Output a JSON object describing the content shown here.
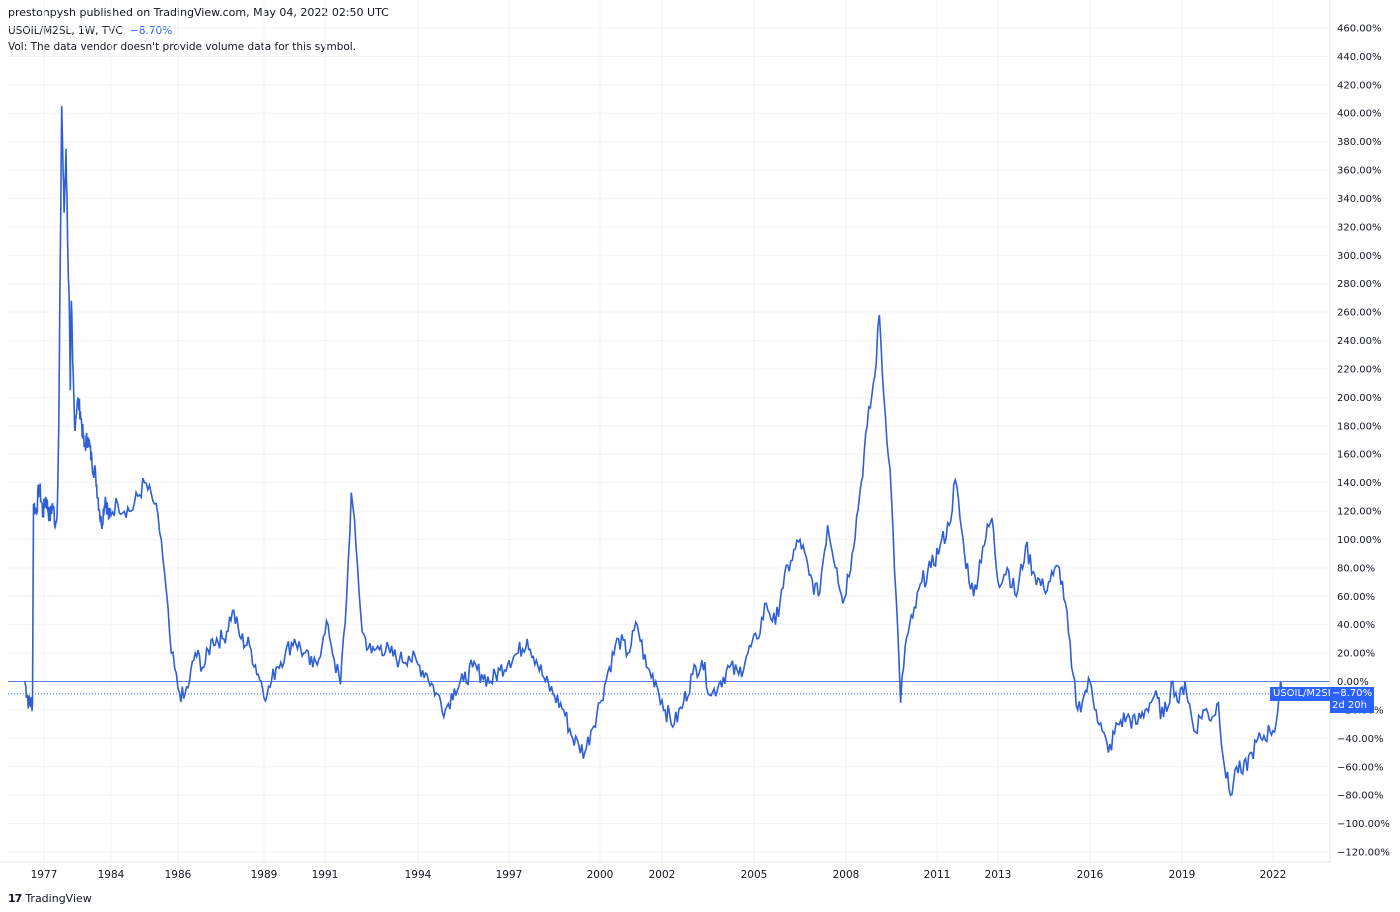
{
  "header": {
    "published": "prestonpysh published on TradingView.com, May 04, 2022 02:50 UTC"
  },
  "legend": {
    "symbol_line": "USOIL/M2SL, 1W, TVC",
    "change": "−8.70%",
    "volume_note": "Vol: The data vendor doesn't provide volume data for this symbol."
  },
  "badge": {
    "symbol": "USOIL/M2SL",
    "value": "−8.70%",
    "countdown": "2d 20h"
  },
  "brand": {
    "logo": "17",
    "name": "TradingView"
  },
  "colors": {
    "line": "#2f5fd6",
    "accent": "#2962ff",
    "grid": "#f0f3fa",
    "baseline": "#5b7fe0"
  },
  "chart_data": {
    "type": "line",
    "title": "",
    "xlabel": "",
    "ylabel": "",
    "y_unit": "%",
    "ylim": [
      -130,
      470
    ],
    "baseline": 0.0,
    "last_value": -8.7,
    "grid": true,
    "y_ticks": [
      460,
      440,
      420,
      400,
      380,
      360,
      340,
      320,
      300,
      280,
      260,
      240,
      220,
      200,
      180,
      160,
      140,
      120,
      100,
      80,
      60,
      40,
      20,
      0,
      -20,
      -40,
      -60,
      -80,
      -100,
      -120
    ],
    "y_tick_labels": [
      "460.00%",
      "440.00%",
      "420.00%",
      "400.00%",
      "380.00%",
      "360.00%",
      "340.00%",
      "320.00%",
      "300.00%",
      "280.00%",
      "260.00%",
      "240.00%",
      "220.00%",
      "200.00%",
      "180.00%",
      "160.00%",
      "140.00%",
      "120.00%",
      "100.00%",
      "80.00%",
      "60.00%",
      "40.00%",
      "20.00%",
      "0.00%",
      "−20.00%",
      "−40.00%",
      "−60.00%",
      "−80.00%",
      "−100.00%",
      "−120.00%"
    ],
    "x_tick_labels": [
      "1977",
      "1984",
      "1986",
      "1989",
      "1991",
      "1994",
      "1997",
      "2000",
      "2002",
      "2005",
      "2008",
      "2011",
      "2013",
      "2016",
      "2019",
      "2022"
    ],
    "x_tick_years": [
      1977,
      1984,
      1986,
      1989,
      1991,
      1994,
      1997,
      2000,
      2002,
      2005,
      2008,
      2011,
      2013,
      2016,
      2019,
      2022
    ],
    "series": [
      {
        "values": [
          [
            1975.0,
            0
          ],
          [
            1975.4,
            -15
          ],
          [
            1975.8,
            -15
          ],
          [
            1975.9,
            125
          ],
          [
            1976.2,
            120
          ],
          [
            1976.5,
            138
          ],
          [
            1976.9,
            118
          ],
          [
            1977.2,
            130
          ],
          [
            1977.6,
            115
          ],
          [
            1977.9,
            125
          ],
          [
            1978.2,
            110
          ],
          [
            1978.4,
            125
          ],
          [
            1978.55,
            180
          ],
          [
            1978.7,
            300
          ],
          [
            1978.85,
            405
          ],
          [
            1979.0,
            360
          ],
          [
            1979.1,
            330
          ],
          [
            1979.3,
            375
          ],
          [
            1979.5,
            300
          ],
          [
            1979.65,
            260
          ],
          [
            1979.75,
            205
          ],
          [
            1979.85,
            268
          ],
          [
            1980.0,
            225
          ],
          [
            1980.2,
            180
          ],
          [
            1980.5,
            198
          ],
          [
            1980.8,
            190
          ],
          [
            1981.2,
            165
          ],
          [
            1981.6,
            172
          ],
          [
            1982.0,
            155
          ],
          [
            1982.4,
            145
          ],
          [
            1982.8,
            120
          ],
          [
            1983.0,
            110
          ],
          [
            1983.4,
            130
          ],
          [
            1983.8,
            115
          ],
          [
            1984.2,
            125
          ],
          [
            1984.6,
            120
          ],
          [
            1985.0,
            140
          ],
          [
            1985.3,
            125
          ],
          [
            1985.5,
            100
          ],
          [
            1985.8,
            20
          ],
          [
            1986.0,
            -5
          ],
          [
            1986.2,
            -12
          ],
          [
            1986.4,
            0
          ],
          [
            1986.6,
            20
          ],
          [
            1986.9,
            10
          ],
          [
            1987.2,
            30
          ],
          [
            1987.6,
            30
          ],
          [
            1987.9,
            50
          ],
          [
            1988.2,
            30
          ],
          [
            1988.5,
            25
          ],
          [
            1988.8,
            5
          ],
          [
            1989.1,
            -10
          ],
          [
            1989.4,
            10
          ],
          [
            1989.7,
            20
          ],
          [
            1990.0,
            30
          ],
          [
            1990.3,
            20
          ],
          [
            1990.6,
            10
          ],
          [
            1990.9,
            25
          ],
          [
            1991.1,
            40
          ],
          [
            1991.3,
            15
          ],
          [
            1991.5,
            -2
          ],
          [
            1991.7,
            60
          ],
          [
            1991.85,
            133
          ],
          [
            1992.0,
            95
          ],
          [
            1992.2,
            35
          ],
          [
            1992.5,
            20
          ],
          [
            1992.8,
            25
          ],
          [
            1993.1,
            20
          ],
          [
            1993.4,
            15
          ],
          [
            1993.7,
            18
          ],
          [
            1994.0,
            12
          ],
          [
            1994.3,
            5
          ],
          [
            1994.6,
            -8
          ],
          [
            1994.9,
            -20
          ],
          [
            1995.2,
            -5
          ],
          [
            1995.5,
            0
          ],
          [
            1995.8,
            10
          ],
          [
            1996.1,
            5
          ],
          [
            1996.4,
            0
          ],
          [
            1996.7,
            8
          ],
          [
            1997.0,
            15
          ],
          [
            1997.3,
            20
          ],
          [
            1997.6,
            30
          ],
          [
            1997.9,
            15
          ],
          [
            1998.2,
            0
          ],
          [
            1998.5,
            -10
          ],
          [
            1998.8,
            -20
          ],
          [
            1999.1,
            -40
          ],
          [
            1999.3,
            -45
          ],
          [
            1999.5,
            -50
          ],
          [
            1999.7,
            -35
          ],
          [
            2000.0,
            -15
          ],
          [
            2000.3,
            10
          ],
          [
            2000.6,
            30
          ],
          [
            2000.9,
            20
          ],
          [
            2001.2,
            40
          ],
          [
            2001.5,
            10
          ],
          [
            2001.8,
            0
          ],
          [
            2002.1,
            -20
          ],
          [
            2002.4,
            -30
          ],
          [
            2002.7,
            -15
          ],
          [
            2003.0,
            5
          ],
          [
            2003.3,
            15
          ],
          [
            2003.6,
            -10
          ],
          [
            2003.9,
            0
          ],
          [
            2004.2,
            10
          ],
          [
            2004.5,
            5
          ],
          [
            2004.8,
            20
          ],
          [
            2005.1,
            30
          ],
          [
            2005.4,
            55
          ],
          [
            2005.7,
            40
          ],
          [
            2005.9,
            65
          ],
          [
            2006.2,
            85
          ],
          [
            2006.5,
            100
          ],
          [
            2006.8,
            75
          ],
          [
            2007.1,
            60
          ],
          [
            2007.4,
            110
          ],
          [
            2007.7,
            80
          ],
          [
            2007.9,
            55
          ],
          [
            2008.2,
            90
          ],
          [
            2008.5,
            140
          ],
          [
            2008.7,
            180
          ],
          [
            2008.95,
            215
          ],
          [
            2009.1,
            258
          ],
          [
            2009.25,
            200
          ],
          [
            2009.45,
            150
          ],
          [
            2009.65,
            60
          ],
          [
            2009.8,
            -15
          ],
          [
            2009.95,
            25
          ],
          [
            2010.2,
            45
          ],
          [
            2010.5,
            70
          ],
          [
            2010.8,
            80
          ],
          [
            2011.1,
            95
          ],
          [
            2011.4,
            110
          ],
          [
            2011.6,
            142
          ],
          [
            2011.9,
            90
          ],
          [
            2012.2,
            60
          ],
          [
            2012.5,
            95
          ],
          [
            2012.8,
            115
          ],
          [
            2013.0,
            70
          ],
          [
            2013.3,
            80
          ],
          [
            2013.6,
            60
          ],
          [
            2013.9,
            95
          ],
          [
            2014.2,
            75
          ],
          [
            2014.5,
            65
          ],
          [
            2014.8,
            75
          ],
          [
            2015.0,
            80
          ],
          [
            2015.2,
            55
          ],
          [
            2015.4,
            10
          ],
          [
            2015.6,
            -20
          ],
          [
            2015.8,
            -10
          ],
          [
            2016.0,
            0
          ],
          [
            2016.2,
            -20
          ],
          [
            2016.4,
            -35
          ],
          [
            2016.6,
            -50
          ],
          [
            2016.9,
            -30
          ],
          [
            2017.2,
            -25
          ],
          [
            2017.5,
            -30
          ],
          [
            2017.8,
            -20
          ],
          [
            2018.1,
            -10
          ],
          [
            2018.4,
            -25
          ],
          [
            2018.7,
            0
          ],
          [
            2018.9,
            -15
          ],
          [
            2019.1,
            0
          ],
          [
            2019.4,
            -35
          ],
          [
            2019.7,
            -20
          ],
          [
            2020.0,
            -25
          ],
          [
            2020.2,
            -15
          ],
          [
            2020.4,
            -60
          ],
          [
            2020.6,
            -80
          ],
          [
            2020.8,
            -60
          ],
          [
            2021.0,
            -65
          ],
          [
            2021.3,
            -50
          ],
          [
            2021.6,
            -40
          ],
          [
            2021.9,
            -35
          ],
          [
            2022.1,
            -30
          ],
          [
            2022.25,
            0
          ],
          [
            2022.32,
            -8.7
          ]
        ]
      }
    ]
  }
}
